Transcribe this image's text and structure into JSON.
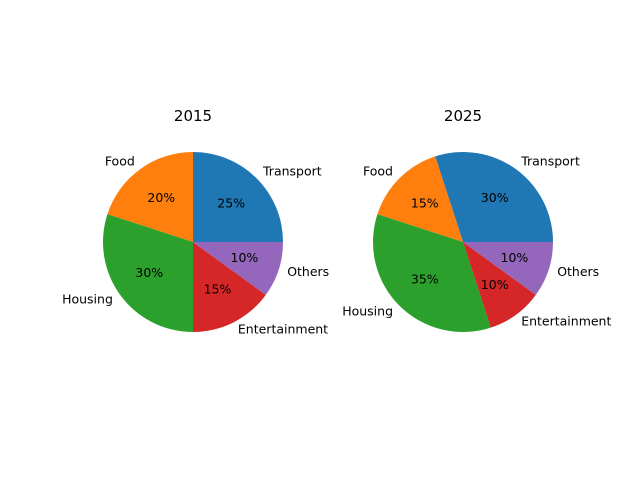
{
  "chart_data": [
    {
      "type": "pie",
      "title": "2015",
      "categories": [
        "Transport",
        "Food",
        "Housing",
        "Entertainment",
        "Others"
      ],
      "values": [
        25,
        20,
        30,
        15,
        10
      ],
      "value_labels": [
        "25%",
        "20%",
        "30%",
        "15%",
        "10%"
      ],
      "colors": [
        "#1f77b4",
        "#ff7f0e",
        "#2ca02c",
        "#d62728",
        "#9467bd"
      ],
      "start_angle_deg": 0,
      "direction": "counterclockwise"
    },
    {
      "type": "pie",
      "title": "2025",
      "categories": [
        "Transport",
        "Food",
        "Housing",
        "Entertainment",
        "Others"
      ],
      "values": [
        30,
        15,
        35,
        10,
        10
      ],
      "value_labels": [
        "30%",
        "15%",
        "35%",
        "10%",
        "10%"
      ],
      "colors": [
        "#1f77b4",
        "#ff7f0e",
        "#2ca02c",
        "#d62728",
        "#9467bd"
      ],
      "start_angle_deg": 0,
      "direction": "counterclockwise"
    }
  ]
}
